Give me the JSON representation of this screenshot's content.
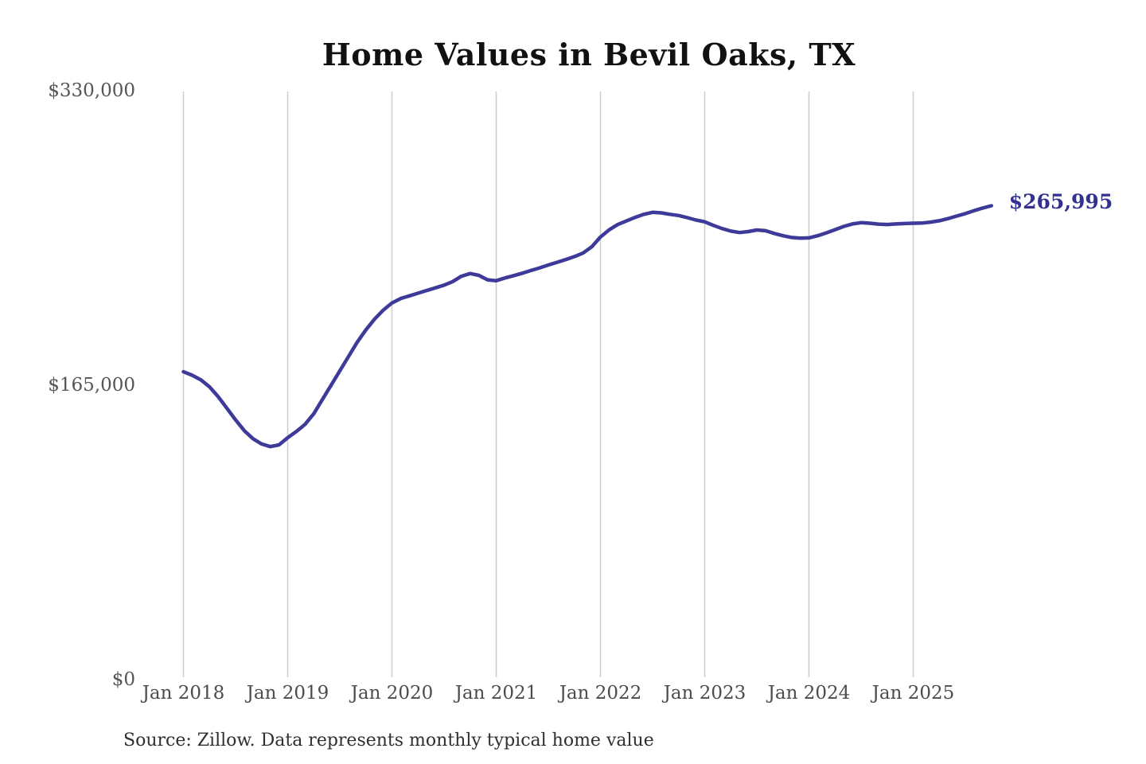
{
  "chart_data": {
    "type": "line",
    "title": "Home Values in Bevil Oaks, TX",
    "xlabel": "",
    "ylabel": "",
    "ylim": [
      0,
      330000
    ],
    "grid": "vertical-only",
    "legend": "none",
    "x_start": "Jan 2018",
    "x_interval": "month",
    "x_ticks": [
      "Jan 2018",
      "Jan 2019",
      "Jan 2020",
      "Jan 2021",
      "Jan 2022",
      "Jan 2023",
      "Jan 2024",
      "Jan 2025"
    ],
    "y_ticks": [
      {
        "label": "$330,000",
        "value": 330000
      },
      {
        "label": "$165,000",
        "value": 165000
      },
      {
        "label": "$0",
        "value": 0
      }
    ],
    "series": [
      {
        "name": "Monthly typical home value",
        "values": [
          173000,
          171000,
          168500,
          164500,
          159000,
          152500,
          146000,
          140000,
          135500,
          132500,
          131000,
          132000,
          136000,
          139500,
          143500,
          149500,
          157500,
          165500,
          173500,
          181500,
          189500,
          196500,
          202500,
          207500,
          211500,
          214000,
          215500,
          217000,
          218500,
          220000,
          221500,
          223500,
          226500,
          228000,
          227000,
          224500,
          224000,
          225500,
          226800,
          228200,
          229700,
          231200,
          232800,
          234300,
          235800,
          237500,
          239500,
          243000,
          248500,
          252500,
          255500,
          257500,
          259500,
          261200,
          262300,
          262000,
          261200,
          260500,
          259300,
          258000,
          257000,
          255000,
          253200,
          251800,
          251000,
          251500,
          252400,
          252000,
          250500,
          249200,
          248200,
          247800,
          248000,
          249200,
          250800,
          252600,
          254400,
          255800,
          256500,
          256200,
          255700,
          255500,
          255800,
          256000,
          256200,
          256300,
          256800,
          257600,
          258800,
          260200,
          261600,
          263200,
          264700,
          265995
        ]
      }
    ],
    "end_label": {
      "text": "$265,995",
      "value": 265995
    },
    "source": "Source: Zillow. Data represents monthly typical home value",
    "colors": {
      "line": "#3d3a99",
      "end_label": "#33318f",
      "grid": "#cccccc",
      "axis_labels": "#555555",
      "title": "#111111",
      "source": "#2f2f2f"
    }
  }
}
